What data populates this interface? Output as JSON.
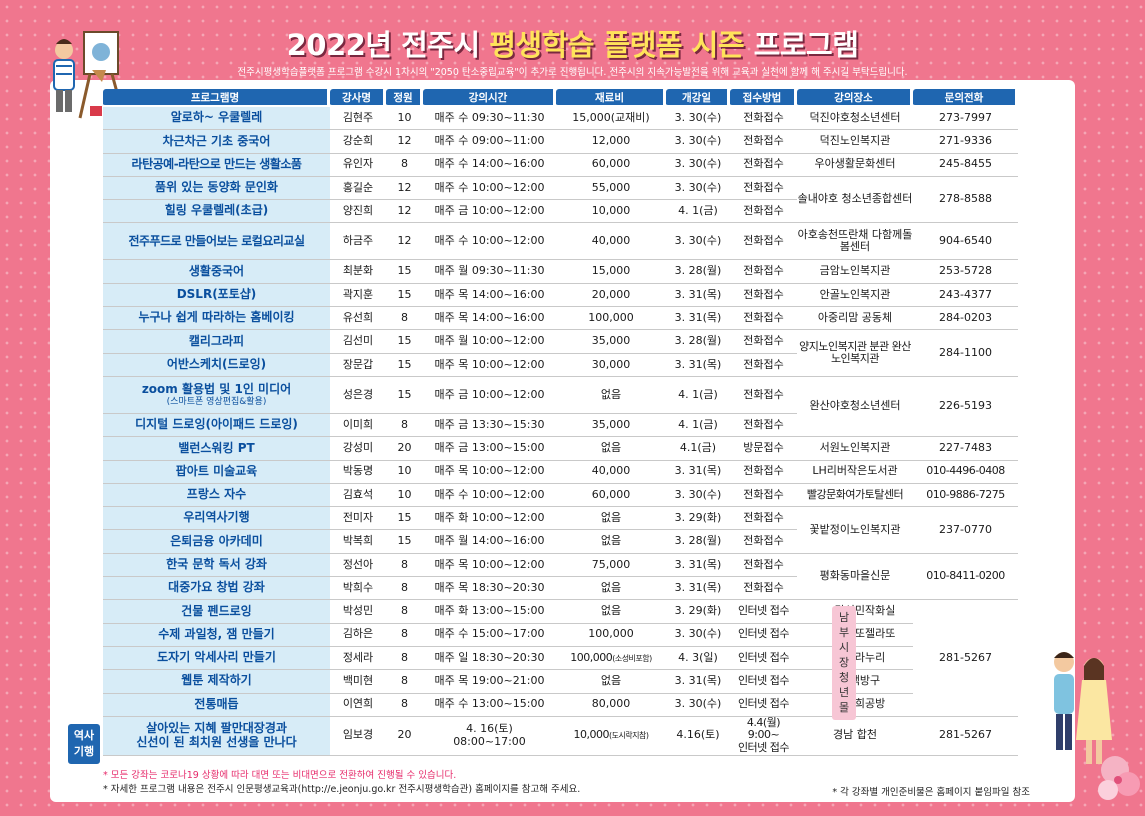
{
  "header": {
    "title_prefix": "2022년 전주시",
    "title_highlight": "평생학습 플랫폼 시즌",
    "title_suffix": "프로그램",
    "subtitle": "전주시평생학습플랫폼 프로그램 수강시 1차시의 \"2050 탄소중립교육\"이 추가로 진행됩니다. 전주시의 지속가능발전을 위해 교육과 실천에 함께 해 주시길 부탁드립니다."
  },
  "table": {
    "headers": [
      "프로그램명",
      "강사명",
      "정원",
      "강의시간",
      "재료비",
      "개강일",
      "접수방법",
      "강의장소",
      "문의전화"
    ],
    "rows": [
      {
        "name": "알로하~ 우쿨렐레",
        "teacher": "김현주",
        "cap": "10",
        "time": "매주 수 09:30~11:30",
        "fee": "15,000(교재비)",
        "start": "3. 30(수)",
        "method": "전화접수",
        "place": "덕진야호청소년센터",
        "phone": "273-7997"
      },
      {
        "name": "차근차근 기초 중국어",
        "teacher": "강순희",
        "cap": "12",
        "time": "매주 수 09:00~11:00",
        "fee": "12,000",
        "start": "3. 30(수)",
        "method": "전화접수",
        "place": "덕진노인복지관",
        "phone": "271-9336"
      },
      {
        "name": "라탄공예-라탄으로 만드는 생활소품",
        "teacher": "유인자",
        "cap": "8",
        "time": "매주 수 14:00~16:00",
        "fee": "60,000",
        "start": "3. 30(수)",
        "method": "전화접수",
        "place": "우아생활문화센터",
        "phone": "245-8455"
      },
      {
        "name": "품위 있는 동양화 문인화",
        "teacher": "홍길순",
        "cap": "12",
        "time": "매주 수 10:00~12:00",
        "fee": "55,000",
        "start": "3. 30(수)",
        "method": "전화접수",
        "place": "솔내야호 청소년종합센터",
        "phone": "278-8588"
      },
      {
        "name": "힐링 우쿨렐레(초급)",
        "teacher": "양진희",
        "cap": "12",
        "time": "매주 금 10:00~12:00",
        "fee": "10,000",
        "start": "4. 1(금)",
        "method": "전화접수"
      },
      {
        "name": "전주푸드로 만들어보는 로컬요리교실",
        "teacher": "하금주",
        "cap": "12",
        "time": "매주 수 10:00~12:00",
        "fee": "40,000",
        "start": "3. 30(수)",
        "method": "전화접수",
        "place": "아호송천뜨란채 다함께돌봄센터",
        "phone": "904-6540"
      },
      {
        "name": "생활중국어",
        "teacher": "최분화",
        "cap": "15",
        "time": "매주 월 09:30~11:30",
        "fee": "15,000",
        "start": "3. 28(월)",
        "method": "전화접수",
        "place": "금암노인복지관",
        "phone": "253-5728"
      },
      {
        "name": "DSLR(포토샵)",
        "teacher": "곽지훈",
        "cap": "15",
        "time": "매주 목 14:00~16:00",
        "fee": "20,000",
        "start": "3. 31(목)",
        "method": "전화접수",
        "place": "안골노인복지관",
        "phone": "243-4377"
      },
      {
        "name": "누구나 쉽게 따라하는 홈베이킹",
        "teacher": "유선희",
        "cap": "8",
        "time": "매주 목 14:00~16:00",
        "fee": "100,000",
        "start": "3. 31(목)",
        "method": "전화접수",
        "place": "아중리맘 공동체",
        "phone": "284-0203"
      },
      {
        "name": "캘리그라피",
        "teacher": "김선미",
        "cap": "15",
        "time": "매주 월 10:00~12:00",
        "fee": "35,000",
        "start": "3. 28(월)",
        "method": "전화접수",
        "place": "양지노인복지관 분관 완산노인복지관",
        "phone": "284-1100"
      },
      {
        "name": "어반스케치(드로잉)",
        "teacher": "장문갑",
        "cap": "15",
        "time": "매주 목 10:00~12:00",
        "fee": "30,000",
        "start": "3. 31(목)",
        "method": "전화접수"
      },
      {
        "name": "zoom 활용법 및 1인 미디어",
        "name_sub": "(스마트폰 영상편집&활용)",
        "teacher": "성은경",
        "cap": "15",
        "time": "매주 금 10:00~12:00",
        "fee": "없음",
        "start": "4. 1(금)",
        "method": "전화접수",
        "place": "완산야호청소년센터",
        "phone": "226-5193"
      },
      {
        "name": "디지털 드로잉(아이패드 드로잉)",
        "teacher": "이미희",
        "cap": "8",
        "time": "매주 금 13:30~15:30",
        "fee": "35,000",
        "start": "4. 1(금)",
        "method": "전화접수"
      },
      {
        "name": "밸런스워킹 PT",
        "teacher": "강성미",
        "cap": "20",
        "time": "매주 금 13:00~15:00",
        "fee": "없음",
        "start": "4.1(금)",
        "method": "방문접수",
        "place": "서원노인복지관",
        "phone": "227-7483"
      },
      {
        "name": "팝아트 미술교육",
        "teacher": "박동명",
        "cap": "10",
        "time": "매주 목 10:00~12:00",
        "fee": "40,000",
        "start": "3. 31(목)",
        "method": "전화접수",
        "place": "LH리버작은도서관",
        "phone": "010-4496-0408"
      },
      {
        "name": "프랑스 자수",
        "teacher": "김효석",
        "cap": "10",
        "time": "매주 수 10:00~12:00",
        "fee": "60,000",
        "start": "3. 30(수)",
        "method": "전화접수",
        "place": "빨강문화여가토탈센터",
        "phone": "010-9886-7275"
      },
      {
        "name": "우리역사기행",
        "teacher": "전미자",
        "cap": "15",
        "time": "매주 화 10:00~12:00",
        "fee": "없음",
        "start": "3. 29(화)",
        "method": "전화접수",
        "place": "꽃밭정이노인복지관",
        "phone": "237-0770"
      },
      {
        "name": "은퇴금융 아카데미",
        "teacher": "박복희",
        "cap": "15",
        "time": "매주 월 14:00~16:00",
        "fee": "없음",
        "start": "3. 28(월)",
        "method": "전화접수"
      },
      {
        "name": "한국 문학 독서 강좌",
        "teacher": "정선아",
        "cap": "8",
        "time": "매주 목 10:00~12:00",
        "fee": "75,000",
        "start": "3. 31(목)",
        "method": "전화접수",
        "place": "평화동마을신문",
        "phone": "010-8411-0200"
      },
      {
        "name": "대중가요 창법 강좌",
        "teacher": "박희수",
        "cap": "8",
        "time": "매주 목 18:30~20:30",
        "fee": "없음",
        "start": "3. 31(목)",
        "method": "전화접수"
      },
      {
        "name": "건물 펜드로잉",
        "teacher": "박성민",
        "cap": "8",
        "time": "매주 화 13:00~15:00",
        "fee": "없음",
        "start": "3. 29(화)",
        "method": "인터넷 접수",
        "place": "감성민작화실",
        "phone": "281-5267"
      },
      {
        "name": "수제 과일청, 잼 만들기",
        "teacher": "김하은",
        "cap": "8",
        "time": "매주 수 15:00~17:00",
        "fee": "100,000",
        "start": "3. 30(수)",
        "method": "인터넷 접수",
        "place": "오늘또젤라또"
      },
      {
        "name": "도자기 악세사리 만들기",
        "teacher": "정세라",
        "cap": "8",
        "time": "매주 일 18:30~20:30",
        "fee": "100,000",
        "fee_sub": "(소성비포함)",
        "start": "4. 3(일)",
        "method": "인터넷 접수",
        "place": "세라누리"
      },
      {
        "name": "웹툰 제작하기",
        "teacher": "백미현",
        "cap": "8",
        "time": "매주 목 19:00~21:00",
        "fee": "없음",
        "start": "3. 31(목)",
        "method": "인터넷 접수",
        "place": "백방구"
      },
      {
        "name": "전통매듭",
        "teacher": "이연희",
        "cap": "8",
        "time": "매주 수 13:00~15:00",
        "fee": "80,000",
        "start": "3. 30(수)",
        "method": "인터넷 접수",
        "place": "연희공방"
      },
      {
        "name": "살아있는 지혜 팔만대장경과",
        "name2": "신선이 된 최치원 선생을 만나다",
        "teacher": "임보경",
        "cap": "20",
        "time": "4. 16(토)",
        "time2": "08:00~17:00",
        "fee": "10,000",
        "fee_sub": "(도시락지참)",
        "start": "4.16(토)",
        "method": "4.4(월) 9:00~",
        "method2": "인터넷 접수",
        "place": "경남 합천",
        "phone": "281-5267"
      }
    ]
  },
  "side_tag": {
    "line1": "역사",
    "line2": "기행"
  },
  "vertical_label": "남부시장청년몰",
  "notes": {
    "note1": "* 모든 강좌는 코로나19 상황에 따라 대면 또는 비대면으로 전환하여 진행될 수 있습니다.",
    "note2": "* 자세한 프로그램 내용은 전주시 인문평생교육과(http://e.jeonju.go.kr 전주시평생학습관) 홈페이지를 참고해 주세요.",
    "note3": "* 각 강좌별 개인준비물은 홈페이지 붙임파일 참조"
  },
  "colors": {
    "background": "#f0768e",
    "header": "#1f66b0",
    "name_cell": "#d7ecf7",
    "name_text": "#0a4f9e",
    "highlight": "#ffe35a"
  }
}
